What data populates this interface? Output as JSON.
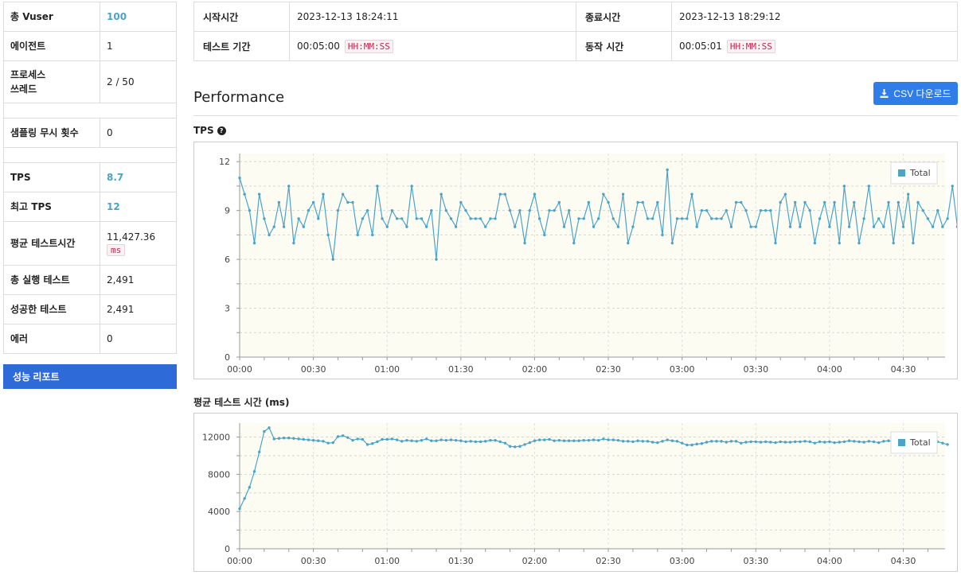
{
  "summary": {
    "rows": [
      {
        "label": "총 Vuser",
        "value": "100"
      },
      {
        "label": "에이전트",
        "value": "1"
      },
      {
        "label": "프로세스",
        "label2": "쓰레드",
        "value": "2 / 50"
      },
      {
        "label": "샘플링 무시 횟수",
        "value": "0"
      },
      {
        "label": "TPS",
        "value": "8.7"
      },
      {
        "label": "최고 TPS",
        "value": "12"
      },
      {
        "label": "평균 테스트시간",
        "value": "11,427.36",
        "unit": "ms"
      },
      {
        "label": "총 실행 테스트",
        "value": "2,491"
      },
      {
        "label": "성공한 테스트",
        "value": "2,491"
      },
      {
        "label": "에러",
        "value": "0"
      }
    ],
    "report_button": "성능 리포트"
  },
  "info": {
    "start_label": "시작시간",
    "start_value": "2023-12-13 18:24:11",
    "end_label": "종료시간",
    "end_value": "2023-12-13 18:29:12",
    "duration_label": "테스트 기간",
    "duration_value": "00:05:00",
    "duration_fmt": "HH:MM:SS",
    "run_label": "동작 시간",
    "run_value": "00:05:01",
    "run_fmt": "HH:MM:SS"
  },
  "performance": {
    "title": "Performance",
    "csv_button": "CSV 다운로드",
    "tps_label": "TPS",
    "mtt_label": "평균 테스트 시간 (ms)"
  },
  "colors": {
    "accent": "#4aa3c9",
    "series": "#4aa3c9",
    "button": "#2f7de8",
    "report": "#2f6bd8",
    "plot_bg": "#fcfcf3"
  },
  "chart_data": [
    {
      "type": "line",
      "title": "TPS",
      "xlabel": "",
      "ylabel": "",
      "x_ticks": [
        "00:00",
        "00:30",
        "01:00",
        "01:30",
        "02:00",
        "02:30",
        "03:00",
        "03:30",
        "04:00",
        "04:30"
      ],
      "x_range_seconds": [
        0,
        287
      ],
      "ylim": [
        0,
        12.5
      ],
      "y_ticks": [
        0,
        3,
        6,
        9,
        12
      ],
      "legend": "top-right",
      "series": [
        {
          "name": "Total",
          "interval_seconds": 2,
          "values": [
            11,
            10,
            9,
            7,
            10,
            8.5,
            7.5,
            8,
            9.5,
            8,
            10.5,
            7,
            8.5,
            8,
            9,
            9.5,
            8.5,
            10,
            7.5,
            6,
            9,
            10,
            9.5,
            9.5,
            7.5,
            8.5,
            9,
            7.5,
            10.5,
            8.5,
            8,
            9,
            8.5,
            8.5,
            8,
            10.5,
            8.5,
            8.5,
            8,
            9,
            6,
            10,
            9,
            8.5,
            8,
            9.5,
            9,
            8.5,
            8.5,
            8.5,
            8,
            8.5,
            8.5,
            10,
            10,
            9,
            8,
            9,
            7,
            9,
            10,
            8.5,
            7.5,
            9,
            9,
            9.5,
            8,
            9,
            7,
            8.5,
            8.5,
            9.5,
            8,
            8.5,
            10,
            9.5,
            8.5,
            8,
            10,
            7,
            8,
            9.5,
            9.5,
            8.5,
            8.5,
            9.5,
            7.5,
            11.5,
            7,
            8.5,
            8.5,
            8.5,
            10,
            8,
            9,
            9,
            8.5,
            8.5,
            8.5,
            9,
            8,
            9.5,
            9.5,
            9,
            8,
            8,
            9,
            9,
            9,
            7,
            9.5,
            10,
            8,
            9.5,
            8,
            9.5,
            9,
            7,
            8.5,
            9.5,
            8,
            9.5,
            7,
            10.5,
            8,
            9.5,
            7,
            8.5,
            10.5,
            8,
            8.5,
            8,
            9.5,
            7,
            9.5,
            8,
            10,
            7,
            9.5,
            9,
            8.5,
            8,
            9,
            8,
            8.5,
            10.5,
            8,
            9.5,
            9
          ]
        }
      ]
    },
    {
      "type": "line",
      "title": "평균 테스트 시간 (ms)",
      "xlabel": "",
      "ylabel": "",
      "x_ticks": [
        "00:00",
        "00:30",
        "01:00",
        "01:30",
        "02:00",
        "02:30",
        "03:00",
        "03:30",
        "04:00",
        "04:30"
      ],
      "x_range_seconds": [
        0,
        287
      ],
      "ylim": [
        0,
        13500
      ],
      "y_ticks": [
        0,
        4000,
        8000,
        12000
      ],
      "legend": "top-right",
      "series": [
        {
          "name": "Total",
          "interval_seconds": 2,
          "values": [
            4300,
            5400,
            6600,
            8300,
            10400,
            12600,
            13000,
            11800,
            11850,
            11900,
            11900,
            11850,
            11800,
            11750,
            11700,
            11650,
            11600,
            11550,
            11350,
            11400,
            12050,
            12150,
            11950,
            11650,
            11800,
            11750,
            11200,
            11300,
            11500,
            11750,
            11750,
            11800,
            11700,
            11550,
            11650,
            11600,
            11550,
            11650,
            11800,
            11600,
            11600,
            11700,
            11650,
            11700,
            11650,
            11600,
            11500,
            11550,
            11500,
            11500,
            11550,
            11650,
            11650,
            11500,
            11350,
            11000,
            10950,
            11000,
            11200,
            11400,
            11600,
            11700,
            11700,
            11750,
            11600,
            11650,
            11600,
            11600,
            11600,
            11600,
            11650,
            11650,
            11700,
            11650,
            11800,
            11700,
            11700,
            11650,
            11550,
            11550,
            11500,
            11600,
            11550,
            11550,
            11450,
            11400,
            11550,
            11700,
            11600,
            11550,
            11350,
            11150,
            11150,
            11250,
            11300,
            11450,
            11550,
            11550,
            11550,
            11450,
            11550,
            11550,
            11350,
            11450,
            11500,
            11500,
            11450,
            11500,
            11450,
            11400,
            11500,
            11450,
            11450,
            11500,
            11500,
            11550,
            11500,
            11350,
            11500,
            11450,
            11500,
            11400,
            11450,
            11500,
            11600,
            11550,
            11500,
            11450,
            11550,
            11500,
            11400,
            11550,
            11600,
            11500,
            11450,
            11600,
            11500,
            11650,
            11700,
            11650,
            11550,
            11600,
            11500,
            11350,
            11200
          ]
        }
      ]
    }
  ]
}
